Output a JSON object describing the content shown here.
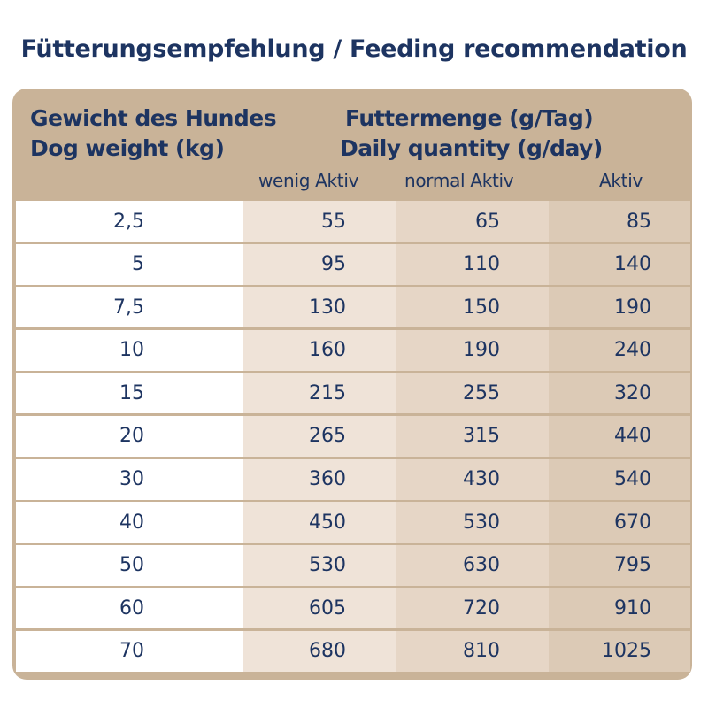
{
  "title": "Fütterungsempfehlung / Feeding recommendation",
  "header": {
    "weight_de": "Gewicht des Hundes",
    "weight_en": "Dog weight (kg)",
    "qty_de": "Futtermenge (g/Tag)",
    "qty_en": "Daily quantity (g/day)",
    "col_low": "wenig Aktiv",
    "col_normal": "normal Aktiv",
    "col_active": "Aktiv"
  },
  "rows": [
    [
      "2,5",
      "55",
      "65",
      "85"
    ],
    [
      "5",
      "95",
      "110",
      "140"
    ],
    [
      "7,5",
      "130",
      "150",
      "190"
    ],
    [
      "10",
      "160",
      "190",
      "240"
    ],
    [
      "15",
      "215",
      "255",
      "320"
    ],
    [
      "20",
      "265",
      "315",
      "440"
    ],
    [
      "30",
      "360",
      "430",
      "540"
    ],
    [
      "40",
      "450",
      "530",
      "670"
    ],
    [
      "50",
      "530",
      "630",
      "795"
    ],
    [
      "60",
      "605",
      "720",
      "910"
    ],
    [
      "70",
      "680",
      "810",
      "1025"
    ]
  ]
}
